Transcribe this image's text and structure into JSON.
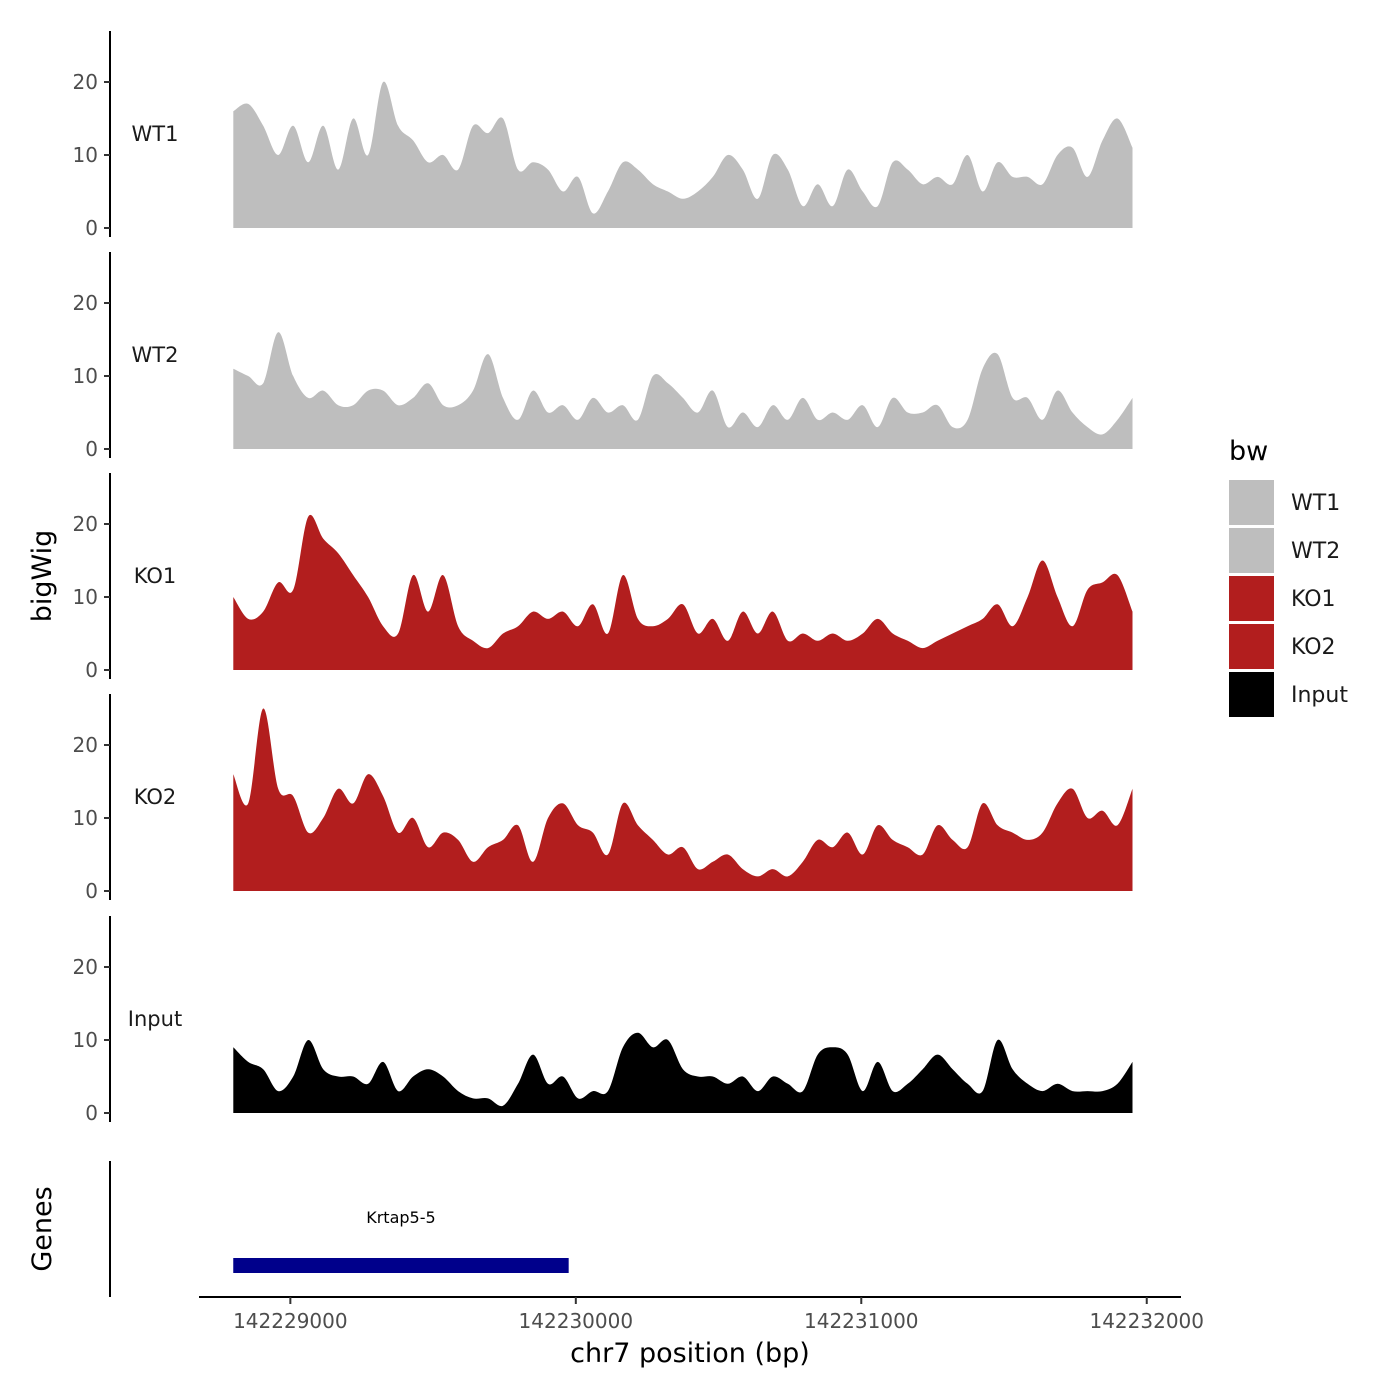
{
  "chart_data": {
    "type": "area",
    "ylabel": "bigWig",
    "xlabel": "chr7 position (bp)",
    "ylim": [
      0,
      27
    ],
    "y_ticks": [
      0,
      10,
      20
    ],
    "xlim": [
      142228680,
      142232120
    ],
    "x_ticks": [
      142229000,
      142230000,
      142231000,
      142232000
    ],
    "x_tick_labels": [
      "142229000",
      "142230000",
      "142231000",
      "142232000"
    ],
    "data_range": [
      142228800,
      142231950
    ],
    "grid": false,
    "legend": {
      "title": "bw",
      "position": "right",
      "entries": [
        {
          "label": "WT1",
          "color": "#bebebe"
        },
        {
          "label": "WT2",
          "color": "#bebebe"
        },
        {
          "label": "KO1",
          "color": "#b21e1e"
        },
        {
          "label": "KO2",
          "color": "#b21e1e"
        },
        {
          "label": "Input",
          "color": "#000000"
        }
      ]
    },
    "series": [
      {
        "name": "WT1",
        "color": "#bebebe",
        "values": [
          16,
          17,
          14,
          10,
          14,
          9,
          14,
          8,
          15,
          10,
          20,
          14,
          12,
          9,
          10,
          8,
          14,
          13,
          15,
          8,
          9,
          8,
          5,
          7,
          2,
          5,
          9,
          8,
          6,
          5,
          4,
          5,
          7,
          10,
          8,
          4,
          10,
          8,
          3,
          6,
          3,
          8,
          5,
          3,
          9,
          8,
          6,
          7,
          6,
          10,
          5,
          9,
          7,
          7,
          6,
          10,
          11,
          7,
          12,
          15,
          11
        ]
      },
      {
        "name": "WT2",
        "color": "#bebebe",
        "values": [
          11,
          10,
          9,
          16,
          10,
          7,
          8,
          6,
          6,
          8,
          8,
          6,
          7,
          9,
          6,
          6,
          8,
          13,
          7,
          4,
          8,
          5,
          6,
          4,
          7,
          5,
          6,
          4,
          10,
          9,
          7,
          5,
          8,
          3,
          5,
          3,
          6,
          4,
          7,
          4,
          5,
          4,
          6,
          3,
          7,
          5,
          5,
          6,
          3,
          4,
          11,
          13,
          7,
          7,
          4,
          8,
          5,
          3,
          2,
          4,
          7
        ]
      },
      {
        "name": "KO1",
        "color": "#b21e1e",
        "values": [
          10,
          7,
          8,
          12,
          11,
          21,
          18,
          16,
          13,
          10,
          6,
          5,
          13,
          8,
          13,
          6,
          4,
          3,
          5,
          6,
          8,
          7,
          8,
          6,
          9,
          5,
          13,
          7,
          6,
          7,
          9,
          5,
          7,
          4,
          8,
          5,
          8,
          4,
          5,
          4,
          5,
          4,
          5,
          7,
          5,
          4,
          3,
          4,
          5,
          6,
          7,
          9,
          6,
          10,
          15,
          10,
          6,
          11,
          12,
          13,
          8
        ]
      },
      {
        "name": "KO2",
        "color": "#b21e1e",
        "values": [
          16,
          12,
          25,
          14,
          13,
          8,
          10,
          14,
          12,
          16,
          13,
          8,
          10,
          6,
          8,
          7,
          4,
          6,
          7,
          9,
          4,
          10,
          12,
          9,
          8,
          5,
          12,
          9,
          7,
          5,
          6,
          3,
          4,
          5,
          3,
          2,
          3,
          2,
          4,
          7,
          6,
          8,
          5,
          9,
          7,
          6,
          5,
          9,
          7,
          6,
          12,
          9,
          8,
          7,
          8,
          12,
          14,
          10,
          11,
          9,
          14
        ]
      },
      {
        "name": "Input",
        "color": "#000000",
        "values": [
          9,
          7,
          6,
          3,
          5,
          10,
          6,
          5,
          5,
          4,
          7,
          3,
          5,
          6,
          5,
          3,
          2,
          2,
          1,
          4,
          8,
          4,
          5,
          2,
          3,
          3,
          9,
          11,
          9,
          10,
          6,
          5,
          5,
          4,
          5,
          3,
          5,
          4,
          3,
          8,
          9,
          8,
          3,
          7,
          3,
          4,
          6,
          8,
          6,
          4,
          3,
          10,
          6,
          4,
          3,
          4,
          3,
          3,
          3,
          4,
          7
        ]
      }
    ],
    "genes": {
      "axis_label": "Genes",
      "items": [
        {
          "name": "Krtap5-5",
          "start": 142228800,
          "end": 142229975,
          "color": "#00008b"
        }
      ]
    }
  }
}
